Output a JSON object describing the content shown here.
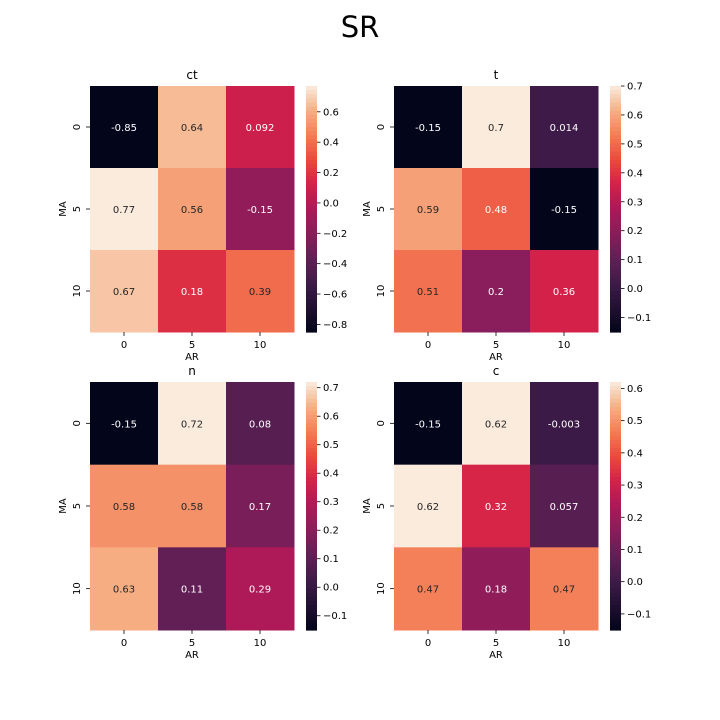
{
  "suptitle": "SR",
  "chart_data": [
    {
      "type": "heatmap",
      "title": "ct",
      "xlabel": "AR",
      "ylabel": "MA",
      "x_categories": [
        "0",
        "5",
        "10"
      ],
      "y_categories": [
        "0",
        "5",
        "10"
      ],
      "values": [
        [
          -0.85,
          0.64,
          0.092
        ],
        [
          0.77,
          0.56,
          -0.15
        ],
        [
          0.67,
          0.18,
          0.39
        ]
      ],
      "cell_labels": [
        [
          "-0.85",
          "0.64",
          "0.092"
        ],
        [
          "0.77",
          "0.56",
          "-0.15"
        ],
        [
          "0.67",
          "0.18",
          "0.39"
        ]
      ],
      "vmin": -0.85,
      "vmax": 0.77,
      "colorbar_ticks": [
        "0.6",
        "0.4",
        "0.2",
        "0.0",
        "−0.2",
        "−0.4",
        "−0.6",
        "−0.8"
      ],
      "colorbar_tick_values": [
        0.6,
        0.4,
        0.2,
        0.0,
        -0.2,
        -0.4,
        -0.6,
        -0.8
      ]
    },
    {
      "type": "heatmap",
      "title": "t",
      "xlabel": "AR",
      "ylabel": "MA",
      "x_categories": [
        "0",
        "5",
        "10"
      ],
      "y_categories": [
        "0",
        "5",
        "10"
      ],
      "values": [
        [
          -0.15,
          0.7,
          0.014
        ],
        [
          0.59,
          0.48,
          -0.15
        ],
        [
          0.51,
          0.2,
          0.36
        ]
      ],
      "cell_labels": [
        [
          "-0.15",
          "0.7",
          "0.014"
        ],
        [
          "0.59",
          "0.48",
          "-0.15"
        ],
        [
          "0.51",
          "0.2",
          "0.36"
        ]
      ],
      "vmin": -0.15,
      "vmax": 0.7,
      "colorbar_ticks": [
        "0.7",
        "0.6",
        "0.5",
        "0.4",
        "0.3",
        "0.2",
        "0.1",
        "0.0",
        "−0.1"
      ],
      "colorbar_tick_values": [
        0.7,
        0.6,
        0.5,
        0.4,
        0.3,
        0.2,
        0.1,
        0.0,
        -0.1
      ]
    },
    {
      "type": "heatmap",
      "title": "n",
      "xlabel": "AR",
      "ylabel": "MA",
      "x_categories": [
        "0",
        "5",
        "10"
      ],
      "y_categories": [
        "0",
        "5",
        "10"
      ],
      "values": [
        [
          -0.15,
          0.72,
          0.08
        ],
        [
          0.58,
          0.58,
          0.17
        ],
        [
          0.63,
          0.11,
          0.29
        ]
      ],
      "cell_labels": [
        [
          "-0.15",
          "0.72",
          "0.08"
        ],
        [
          "0.58",
          "0.58",
          "0.17"
        ],
        [
          "0.63",
          "0.11",
          "0.29"
        ]
      ],
      "vmin": -0.15,
      "vmax": 0.72,
      "colorbar_ticks": [
        "0.7",
        "0.6",
        "0.5",
        "0.4",
        "0.3",
        "0.2",
        "0.1",
        "0.0",
        "−0.1"
      ],
      "colorbar_tick_values": [
        0.7,
        0.6,
        0.5,
        0.4,
        0.3,
        0.2,
        0.1,
        0.0,
        -0.1
      ]
    },
    {
      "type": "heatmap",
      "title": "c",
      "xlabel": "AR",
      "ylabel": "MA",
      "x_categories": [
        "0",
        "5",
        "10"
      ],
      "y_categories": [
        "0",
        "5",
        "10"
      ],
      "values": [
        [
          -0.15,
          0.62,
          -0.003
        ],
        [
          0.62,
          0.32,
          0.057
        ],
        [
          0.47,
          0.18,
          0.47
        ]
      ],
      "cell_labels": [
        [
          "-0.15",
          "0.62",
          "-0.003"
        ],
        [
          "0.62",
          "0.32",
          "0.057"
        ],
        [
          "0.47",
          "0.18",
          "0.47"
        ]
      ],
      "vmin": -0.15,
      "vmax": 0.62,
      "colorbar_ticks": [
        "0.6",
        "0.5",
        "0.4",
        "0.3",
        "0.2",
        "0.1",
        "0.0",
        "−0.1"
      ],
      "colorbar_tick_values": [
        0.6,
        0.5,
        0.4,
        0.3,
        0.2,
        0.1,
        0.0,
        -0.1
      ]
    }
  ],
  "colormap": "rocket"
}
